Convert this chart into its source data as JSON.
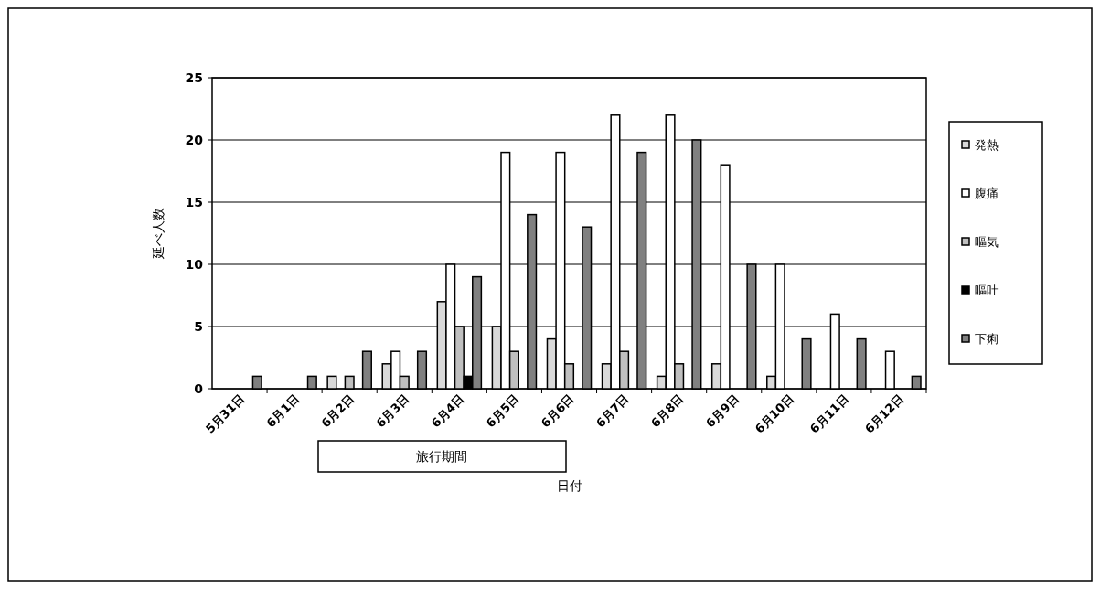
{
  "chart_data": {
    "type": "bar",
    "xlabel": "日付",
    "ylabel": "延べ人数",
    "categories": [
      "5月31日",
      "6月1日",
      "6月2日",
      "6月3日",
      "6月4日",
      "6月5日",
      "6月6日",
      "6月7日",
      "6月8日",
      "6月9日",
      "6月10日",
      "6月11日",
      "6月12日"
    ],
    "series": [
      {
        "name": "発熱",
        "color": "#d9d9d9",
        "values": [
          0,
          0,
          1,
          2,
          7,
          5,
          4,
          2,
          1,
          2,
          1,
          0,
          0
        ]
      },
      {
        "name": "腹痛",
        "color": "#ffffff",
        "values": [
          0,
          0,
          0,
          3,
          10,
          19,
          19,
          22,
          22,
          18,
          10,
          6,
          3
        ]
      },
      {
        "name": "嘔気",
        "color": "#bfbfbf",
        "values": [
          0,
          0,
          1,
          1,
          5,
          3,
          2,
          3,
          2,
          0,
          0,
          0,
          0
        ]
      },
      {
        "name": "嘔吐",
        "color": "#000000",
        "values": [
          0,
          0,
          0,
          0,
          1,
          0,
          0,
          0,
          0,
          0,
          0,
          0,
          0
        ]
      },
      {
        "name": "下痢",
        "color": "#808080",
        "values": [
          1,
          1,
          3,
          3,
          9,
          14,
          13,
          19,
          20,
          10,
          4,
          4,
          1
        ]
      }
    ],
    "ylim": [
      0,
      25
    ],
    "yticks": [
      0,
      5,
      10,
      15,
      20,
      25
    ],
    "grid": "y",
    "legend": "right",
    "annotations": [
      "旅行期間"
    ]
  }
}
